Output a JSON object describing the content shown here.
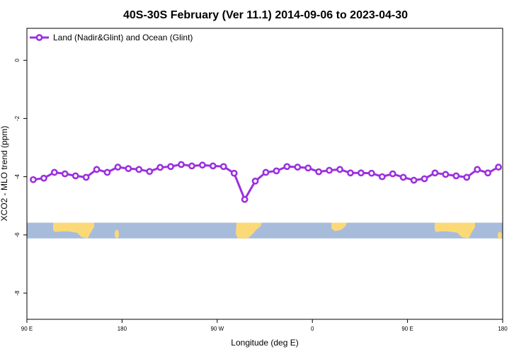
{
  "chart_data": {
    "type": "line",
    "title": "40S-30S February (Ver 11.1)   2014-09-06 to 2023-04-30",
    "xlabel": "Longitude (deg E)",
    "ylabel": "XCO2 - MLO trend (ppm)",
    "xlim": [
      90,
      540
    ],
    "ylim": [
      -8.9,
      1.1
    ],
    "x_ticks": [
      {
        "value": 90,
        "label": "90 E"
      },
      {
        "value": 180,
        "label": "180"
      },
      {
        "value": 270,
        "label": "90 W"
      },
      {
        "value": 360,
        "label": "0"
      },
      {
        "value": 450,
        "label": "90 E"
      },
      {
        "value": 540,
        "label": "180"
      }
    ],
    "y_ticks": [
      {
        "value": 0,
        "label": "0"
      },
      {
        "value": -2,
        "label": "-2"
      },
      {
        "value": -4,
        "label": "-4"
      },
      {
        "value": -6,
        "label": "-6"
      },
      {
        "value": -8,
        "label": "-8"
      }
    ],
    "legend": {
      "position": "top-left"
    },
    "colors": {
      "series": "#9b30e0",
      "ocean": "#a7bcdb",
      "land": "#fbd977"
    },
    "map_band": {
      "y_range": [
        -5.58,
        -6.12
      ]
    },
    "series": [
      {
        "name": "Land (Nadir&Glint) and Ocean (Glint)",
        "x": [
          96,
          106,
          116,
          126,
          136,
          146,
          156,
          166,
          176,
          186,
          196,
          206,
          216,
          226,
          236,
          246,
          256,
          266,
          276,
          286,
          296,
          306,
          316,
          326,
          336,
          346,
          356,
          366,
          376,
          386,
          396,
          406,
          416,
          426,
          436,
          446,
          456,
          466,
          476,
          486,
          496,
          506,
          516,
          526,
          536
        ],
        "values": [
          -4.1,
          -4.05,
          -3.85,
          -3.9,
          -3.97,
          -4.02,
          -3.75,
          -3.85,
          -3.67,
          -3.72,
          -3.75,
          -3.82,
          -3.68,
          -3.65,
          -3.58,
          -3.63,
          -3.6,
          -3.63,
          -3.65,
          -3.88,
          -4.78,
          -4.15,
          -3.85,
          -3.8,
          -3.65,
          -3.67,
          -3.7,
          -3.83,
          -3.78,
          -3.75,
          -3.87,
          -3.87,
          -3.88,
          -4.0,
          -3.9,
          -4.02,
          -4.12,
          -4.07,
          -3.87,
          -3.92,
          -3.97,
          -4.02,
          -3.75,
          -3.87,
          -3.67
        ]
      }
    ]
  }
}
